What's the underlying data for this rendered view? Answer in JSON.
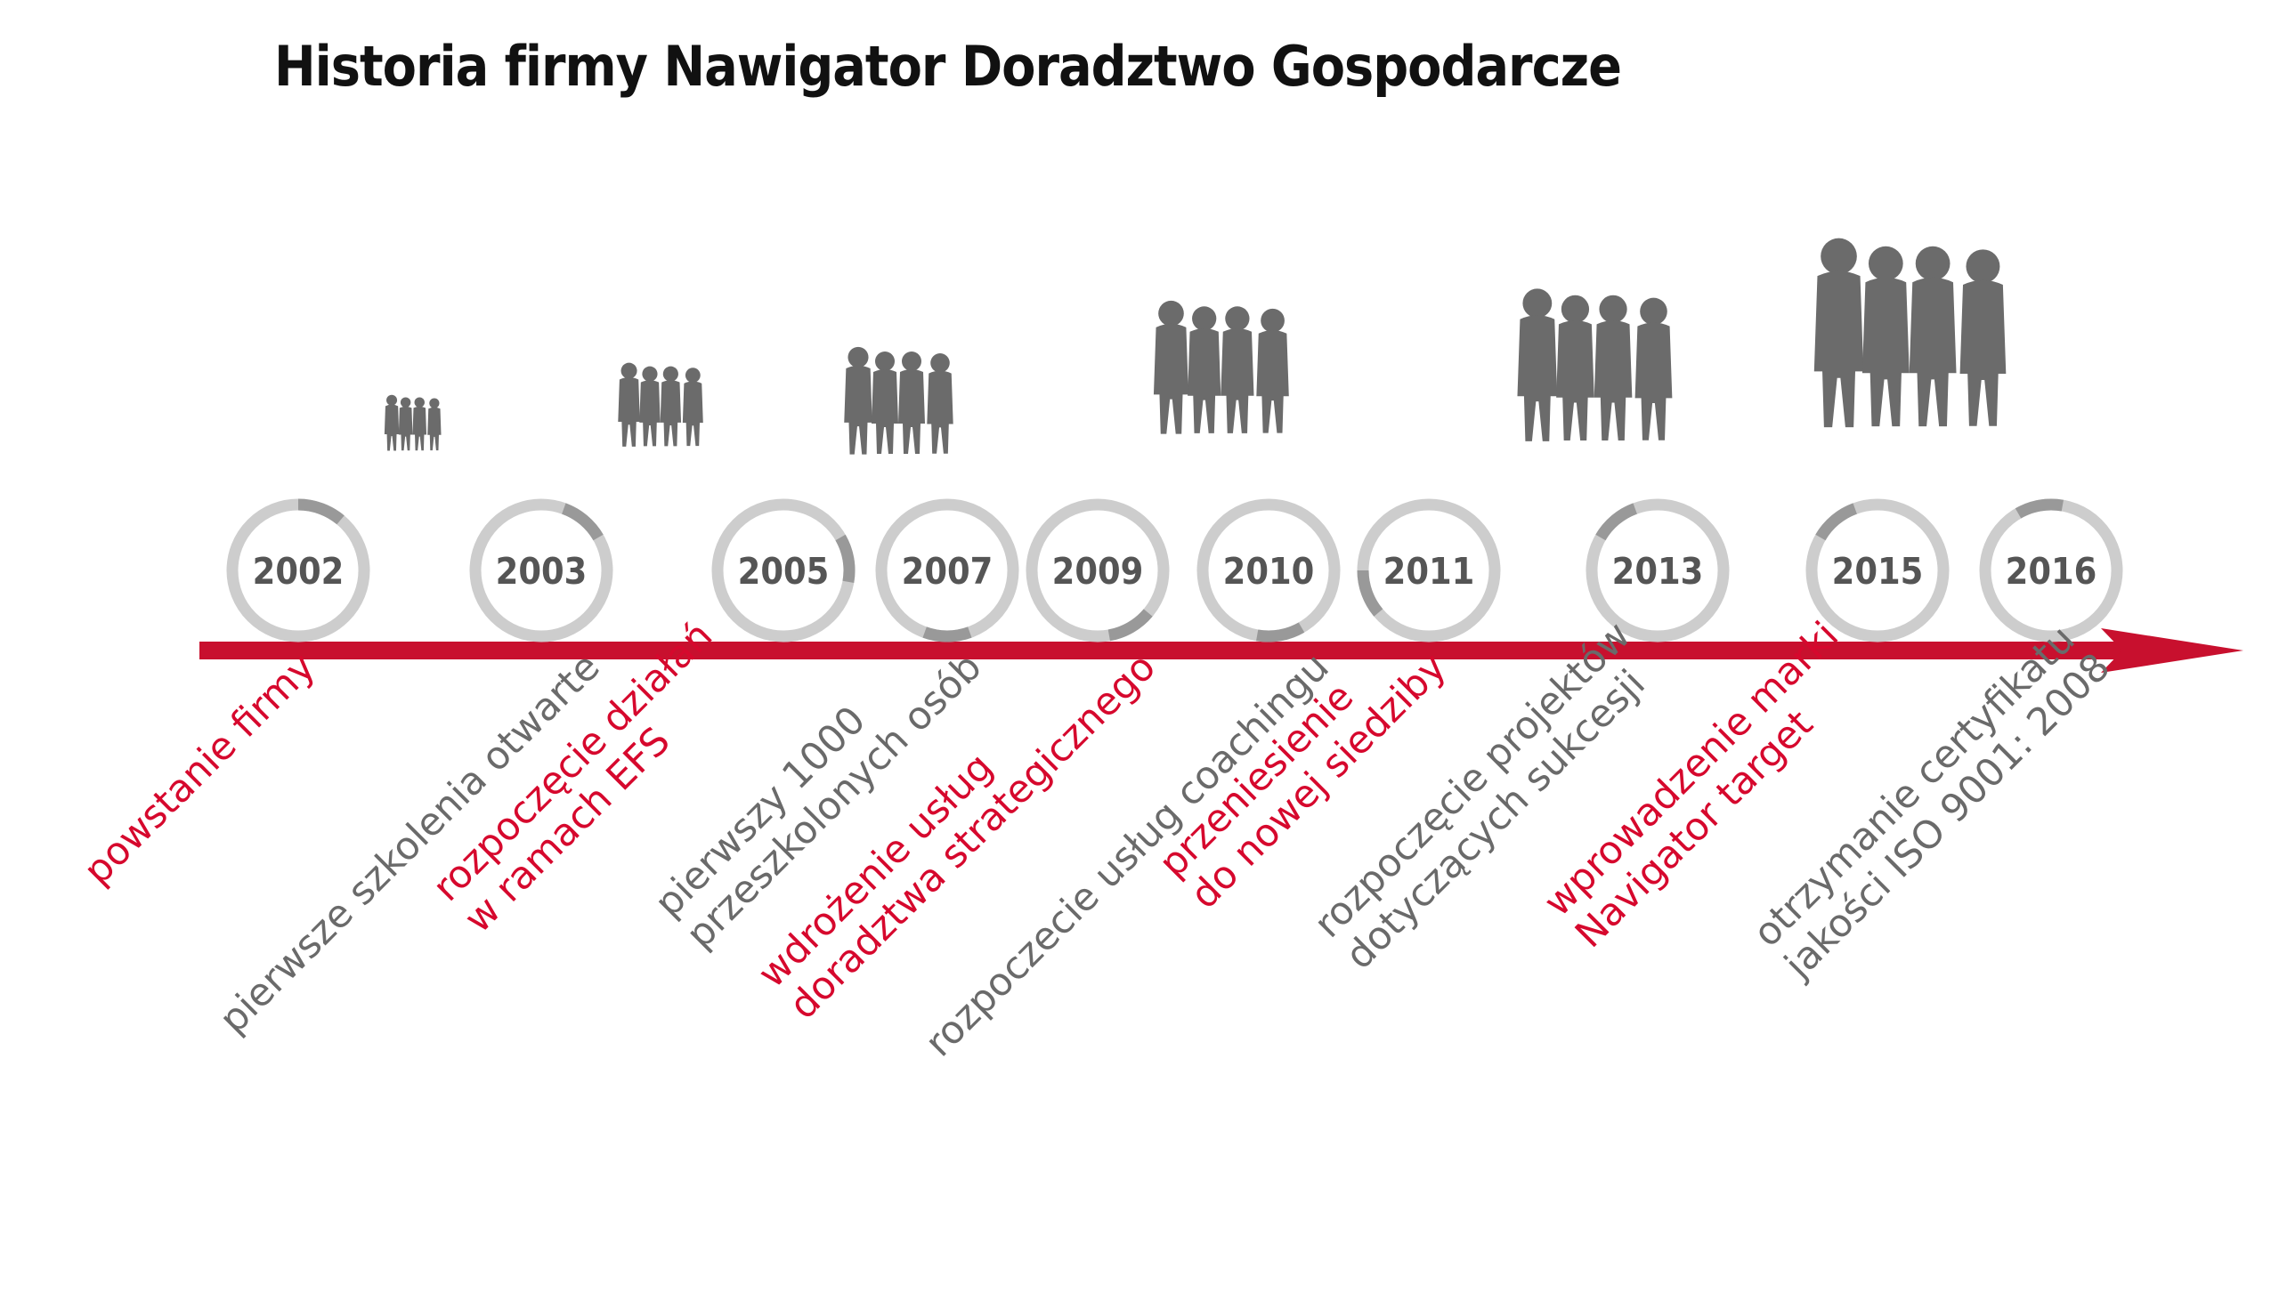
{
  "title": "Historia firmy Nawigator Doradztwo Gospodarcze",
  "colors": {
    "accent": "#c8102e",
    "label_red": "#d6082d",
    "label_grey": "#6a6a6a",
    "ring": "#cdcdcd",
    "ring_accent": "#999999",
    "silhouette": "#6b6b6b"
  },
  "milestones": [
    {
      "year": "2002",
      "label_lines": [
        "powstanie firmy"
      ],
      "color": "red"
    },
    {
      "year": "2003",
      "label_lines": [
        "pierwsze szkolenia otwarte"
      ],
      "color": "grey"
    },
    {
      "year": "2005",
      "label_lines": [
        "rozpoczęcie działań",
        "w ramach EFS"
      ],
      "color": "red"
    },
    {
      "year": "2007",
      "label_lines": [
        "pierwszy 1000",
        "przeszkolonych osób"
      ],
      "color": "grey"
    },
    {
      "year": "2009",
      "label_lines": [
        "wdrożenie usług",
        "doradztwa strategicznego"
      ],
      "color": "red"
    },
    {
      "year": "2010",
      "label_lines": [
        "rozpoczecie usług coachingu"
      ],
      "color": "grey"
    },
    {
      "year": "2011",
      "label_lines": [
        "przeniesienie",
        "do nowej siedziby"
      ],
      "color": "red"
    },
    {
      "year": "2013",
      "label_lines": [
        "rozpoczęcie projektów",
        "dotyczących sukcesji"
      ],
      "color": "grey"
    },
    {
      "year": "2015",
      "label_lines": [
        "wprowadzenie marki",
        "Navigator target"
      ],
      "color": "red"
    },
    {
      "year": "2016",
      "label_lines": [
        "otrzymanie certyfikatu",
        "jakości ISO 9001: 2008"
      ],
      "color": "grey"
    }
  ],
  "people_groups": [
    {
      "icon": "people-group-icon"
    },
    {
      "icon": "people-group-icon"
    },
    {
      "icon": "people-group-icon"
    },
    {
      "icon": "people-group-icon"
    },
    {
      "icon": "people-group-icon"
    },
    {
      "icon": "people-group-icon"
    }
  ]
}
